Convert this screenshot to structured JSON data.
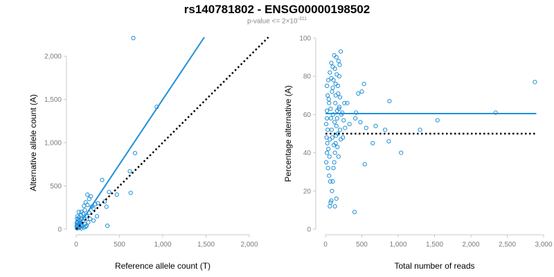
{
  "figure": {
    "title": "rs140781802 - ENSG00000198502",
    "subtitle_prefix": "p-value <= 2×10",
    "subtitle_exponent": "-311"
  },
  "colors": {
    "points": "#1f8fd8",
    "fit_line": "#1f8fd8",
    "reference_line": "#000000",
    "axis": "#c8c8c8",
    "tick_label": "#7a7a7a"
  },
  "chart_data": [
    {
      "type": "scatter",
      "id": "left",
      "xlabel": "Reference allele count (T)",
      "ylabel": "Alternative allele count (A)",
      "xlim": [
        0,
        2000
      ],
      "ylim": [
        0,
        2250
      ],
      "xticks": [
        0,
        500,
        1000,
        1500,
        2000
      ],
      "xtick_labels": [
        "0",
        "500",
        "1,000",
        "1,500",
        "2,000"
      ],
      "yticks": [
        0,
        500,
        1000,
        1500,
        2000
      ],
      "ytick_labels": [
        "0",
        "500",
        "1,000",
        "1,500",
        "2,000"
      ],
      "grid": false,
      "lines": [
        {
          "name": "fit",
          "style": "solid",
          "x": [
            0,
            1480
          ],
          "y": [
            0,
            2220
          ]
        },
        {
          "name": "reference",
          "style": "dotted",
          "x": [
            0,
            2220
          ],
          "y": [
            0,
            2220
          ]
        }
      ],
      "points": [
        [
          660,
          2210
        ],
        [
          930,
          1415
        ],
        [
          680,
          880
        ],
        [
          620,
          670
        ],
        [
          630,
          420
        ],
        [
          300,
          570
        ],
        [
          380,
          430
        ],
        [
          470,
          400
        ],
        [
          170,
          380
        ],
        [
          130,
          400
        ],
        [
          150,
          350
        ],
        [
          110,
          310
        ],
        [
          90,
          270
        ],
        [
          130,
          280
        ],
        [
          180,
          260
        ],
        [
          220,
          290
        ],
        [
          250,
          300
        ],
        [
          330,
          320
        ],
        [
          350,
          260
        ],
        [
          200,
          240
        ],
        [
          100,
          220
        ],
        [
          60,
          200
        ],
        [
          30,
          200
        ],
        [
          80,
          180
        ],
        [
          150,
          190
        ],
        [
          120,
          150
        ],
        [
          90,
          130
        ],
        [
          60,
          120
        ],
        [
          40,
          100
        ],
        [
          20,
          90
        ],
        [
          10,
          80
        ],
        [
          30,
          60
        ],
        [
          50,
          50
        ],
        [
          70,
          40
        ],
        [
          100,
          60
        ],
        [
          140,
          80
        ],
        [
          20,
          30
        ],
        [
          40,
          20
        ],
        [
          10,
          10
        ],
        [
          60,
          10
        ],
        [
          90,
          20
        ],
        [
          110,
          30
        ],
        [
          15,
          150
        ],
        [
          25,
          110
        ],
        [
          10,
          50
        ],
        [
          5,
          30
        ],
        [
          45,
          70
        ],
        [
          75,
          90
        ],
        [
          360,
          40
        ],
        [
          240,
          150
        ],
        [
          200,
          100
        ],
        [
          160,
          120
        ],
        [
          35,
          140
        ],
        [
          55,
          160
        ],
        [
          120,
          40
        ],
        [
          12,
          120
        ],
        [
          8,
          70
        ],
        [
          18,
          45
        ],
        [
          28,
          15
        ],
        [
          65,
          35
        ]
      ]
    },
    {
      "type": "scatter",
      "id": "right",
      "xlabel": "Total number of reads",
      "ylabel": "Percentage alternative (A)",
      "xlim": [
        0,
        3000
      ],
      "ylim": [
        0,
        100
      ],
      "xticks": [
        0,
        500,
        1000,
        1500,
        2000,
        2500,
        3000
      ],
      "xtick_labels": [
        "0",
        "500",
        "1,000",
        "1,500",
        "2,000",
        "2,500",
        "3,000"
      ],
      "yticks": [
        0,
        20,
        40,
        60,
        80,
        100
      ],
      "ytick_labels": [
        "0",
        "20",
        "40",
        "60",
        "80",
        "100"
      ],
      "grid": false,
      "lines": [
        {
          "name": "fit",
          "style": "solid",
          "x": [
            0,
            2900
          ],
          "y": [
            60.5,
            60.5
          ]
        },
        {
          "name": "reference",
          "style": "dotted",
          "x": [
            0,
            2900
          ],
          "y": [
            50,
            50
          ]
        }
      ],
      "points": [
        [
          2880,
          77
        ],
        [
          2340,
          61
        ],
        [
          1540,
          57
        ],
        [
          1300,
          52
        ],
        [
          1040,
          40
        ],
        [
          880,
          67
        ],
        [
          870,
          46
        ],
        [
          820,
          52
        ],
        [
          690,
          54
        ],
        [
          650,
          45
        ],
        [
          560,
          53
        ],
        [
          530,
          76
        ],
        [
          540,
          34
        ],
        [
          500,
          72
        ],
        [
          480,
          56
        ],
        [
          450,
          71
        ],
        [
          420,
          61
        ],
        [
          410,
          58
        ],
        [
          400,
          9
        ],
        [
          330,
          55
        ],
        [
          300,
          66
        ],
        [
          260,
          66
        ],
        [
          240,
          48
        ],
        [
          230,
          61
        ],
        [
          210,
          93
        ],
        [
          180,
          88
        ],
        [
          150,
          90
        ],
        [
          120,
          91
        ],
        [
          200,
          69
        ],
        [
          190,
          80
        ],
        [
          170,
          75
        ],
        [
          160,
          62
        ],
        [
          150,
          54
        ],
        [
          140,
          45
        ],
        [
          130,
          40
        ],
        [
          120,
          35
        ],
        [
          110,
          32
        ],
        [
          100,
          25
        ],
        [
          90,
          20
        ],
        [
          80,
          15
        ],
        [
          70,
          14
        ],
        [
          60,
          12
        ],
        [
          150,
          16
        ],
        [
          130,
          12
        ],
        [
          180,
          38
        ],
        [
          200,
          52
        ],
        [
          80,
          87
        ],
        [
          100,
          85
        ],
        [
          60,
          82
        ],
        [
          40,
          78
        ],
        [
          20,
          75
        ],
        [
          30,
          70
        ],
        [
          50,
          66
        ],
        [
          70,
          63
        ],
        [
          20,
          58
        ],
        [
          10,
          55
        ],
        [
          30,
          52
        ],
        [
          15,
          48
        ],
        [
          25,
          45
        ],
        [
          40,
          42
        ],
        [
          55,
          38
        ],
        [
          10,
          35
        ],
        [
          35,
          32
        ],
        [
          50,
          28
        ],
        [
          65,
          25
        ],
        [
          20,
          62
        ],
        [
          90,
          72
        ],
        [
          110,
          78
        ],
        [
          130,
          84
        ],
        [
          140,
          70
        ],
        [
          160,
          58
        ],
        [
          170,
          50
        ],
        [
          190,
          64
        ],
        [
          210,
          47
        ],
        [
          220,
          60
        ],
        [
          250,
          57
        ],
        [
          270,
          53
        ],
        [
          20,
          40
        ],
        [
          45,
          68
        ],
        [
          75,
          58
        ],
        [
          95,
          48
        ],
        [
          115,
          44
        ],
        [
          135,
          66
        ],
        [
          155,
          81
        ],
        [
          175,
          71
        ],
        [
          195,
          86
        ],
        [
          60,
          47
        ],
        [
          85,
          52
        ],
        [
          105,
          60
        ],
        [
          125,
          56
        ],
        [
          145,
          49
        ],
        [
          165,
          43
        ],
        [
          185,
          63
        ],
        [
          100,
          74
        ],
        [
          80,
          79
        ],
        [
          140,
          76
        ]
      ]
    }
  ]
}
